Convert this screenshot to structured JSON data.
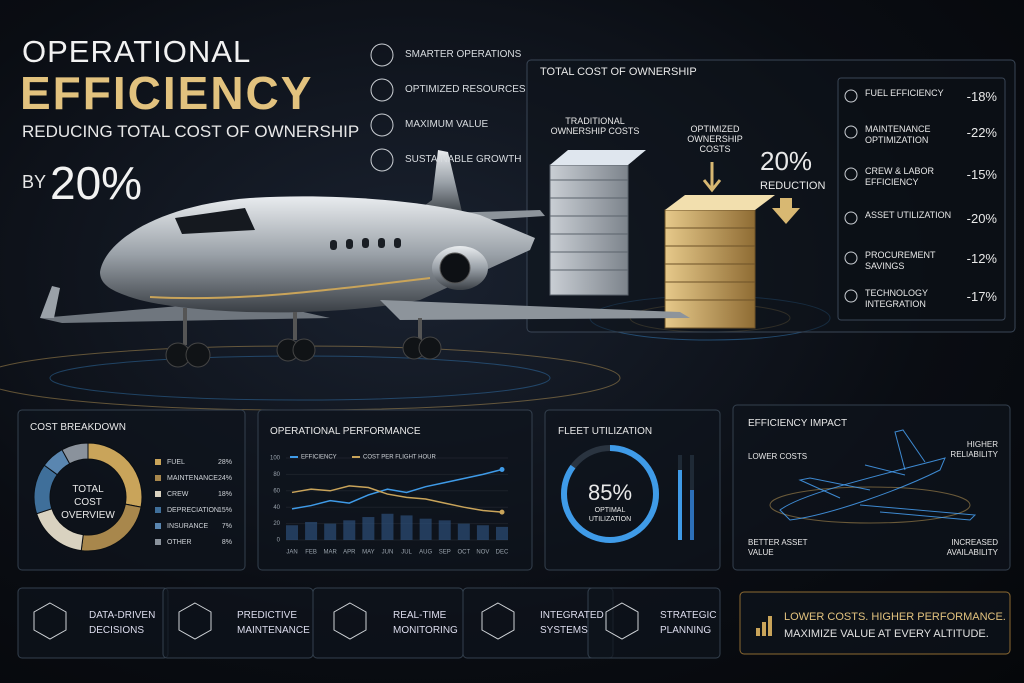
{
  "header": {
    "title_line1": "OPERATIONAL",
    "title_line2": "EFFICIENCY",
    "subtitle": "REDUCING TOTAL COST OF OWNERSHIP",
    "by": "BY",
    "by_value": "20%"
  },
  "benefits": [
    "SMARTER OPERATIONS",
    "OPTIMIZED RESOURCES",
    "MAXIMUM VALUE",
    "SUSTAINABLE GROWTH"
  ],
  "tco": {
    "title": "TOTAL COST OF OWNERSHIP",
    "traditional": "TRADITIONAL OWNERSHIP COSTS",
    "optimized": "OPTIMIZED OWNERSHIP COSTS",
    "reduction_value": "20%",
    "reduction_label": "REDUCTION",
    "items": [
      {
        "label": "FUEL EFFICIENCY",
        "value": "-18%"
      },
      {
        "label": "MAINTENANCE OPTIMIZATION",
        "value": "-22%"
      },
      {
        "label": "CREW & LABOR EFFICIENCY",
        "value": "-15%"
      },
      {
        "label": "ASSET UTILIZATION",
        "value": "-20%"
      },
      {
        "label": "PROCUREMENT SAVINGS",
        "value": "-12%"
      },
      {
        "label": "TECHNOLOGY INTEGRATION",
        "value": "-17%"
      }
    ]
  },
  "chart_data": [
    {
      "type": "pie",
      "title": "COST BREAKDOWN",
      "center_label": "TOTAL COST OVERVIEW",
      "categories": [
        "FUEL",
        "MAINTENANCE",
        "CREW",
        "DEPRECIATION",
        "INSURANCE",
        "OTHER"
      ],
      "values": [
        28,
        24,
        18,
        15,
        7,
        8
      ],
      "value_labels": [
        "28%",
        "24%",
        "18%",
        "15%",
        "7%",
        "8%"
      ],
      "colors": [
        "#c9a45a",
        "#a8874c",
        "#d9d2c0",
        "#3f6f9a",
        "#5a86b0",
        "#8a929c"
      ]
    },
    {
      "type": "line",
      "title": "OPERATIONAL PERFORMANCE",
      "categories": [
        "JAN",
        "FEB",
        "MAR",
        "APR",
        "MAY",
        "JUN",
        "JUL",
        "AUG",
        "SEP",
        "OCT",
        "NOV",
        "DEC"
      ],
      "series": [
        {
          "name": "EFFICIENCY",
          "color": "#3f9be8",
          "values": [
            38,
            42,
            48,
            45,
            55,
            62,
            58,
            65,
            70,
            75,
            80,
            86
          ]
        },
        {
          "name": "COST PER FLIGHT HOUR",
          "color": "#c9a45a",
          "values": [
            58,
            62,
            60,
            66,
            64,
            56,
            52,
            50,
            45,
            40,
            36,
            34
          ]
        },
        {
          "color": "#2c4f78",
          "kind": "bar",
          "values": [
            18,
            22,
            20,
            24,
            28,
            32,
            30,
            26,
            24,
            20,
            18,
            16
          ]
        }
      ],
      "ylim": [
        0,
        100
      ],
      "yticks": [
        0,
        20,
        40,
        60,
        80,
        100
      ]
    },
    {
      "type": "gauge",
      "title": "FLEET UTILIZATION",
      "value": 85,
      "value_label": "85%",
      "label": "OPTIMAL UTILIZATION",
      "ylim": [
        0,
        100
      ],
      "color": "#3f9be8"
    }
  ],
  "impact": {
    "title": "EFFICIENCY IMPACT",
    "labels": [
      "LOWER COSTS",
      "HIGHER RELIABILITY",
      "BETTER ASSET VALUE",
      "INCREASED AVAILABILITY"
    ]
  },
  "features": [
    "DATA-DRIVEN DECISIONS",
    "PREDICTIVE MAINTENANCE",
    "REAL-TIME MONITORING",
    "INTEGRATED SYSTEMS",
    "STRATEGIC PLANNING"
  ],
  "tagline": {
    "line1": "LOWER COSTS. HIGHER PERFORMANCE.",
    "line2": "MAXIMIZE VALUE AT EVERY ALTITUDE."
  }
}
